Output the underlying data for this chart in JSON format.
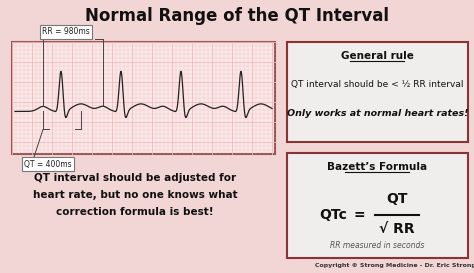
{
  "title": "Normal Range of the QT Interval",
  "bg_color": "#f2d5d5",
  "title_color": "#111111",
  "title_fontsize": 12,
  "ecg_box_border": "#9b5555",
  "ecg_bg_color": "#fce8e8",
  "ecg_grid_minor": "#f0bbbb",
  "ecg_grid_major": "#e8a0a0",
  "rr_label": "RR = 980ms",
  "qt_label": "QT = 400ms",
  "general_rule_title": "General rule",
  "general_rule_line1": "QT interval should be < ½ RR interval",
  "general_rule_line2": "Only works at normal heart rates!",
  "bazett_title": "Bazett’s Formula",
  "bazett_formula_top": "QT",
  "bazett_formula_bottom": "√ RR",
  "bazett_qtc": "QTc   =",
  "bazett_note": "RR measured in seconds",
  "bottom_text_line1": "QT interval should be adjusted for",
  "bottom_text_line2": "heart rate, but no one knows what",
  "bottom_text_line3": "correction formula is best!",
  "copyright": "Copyright © Strong Medicine - Dr. Eric Strong",
  "box_border_color": "#8B3333",
  "box_bg_color": "#f0eded",
  "dark_text": "#111111",
  "ecg_line_color": "#222222"
}
